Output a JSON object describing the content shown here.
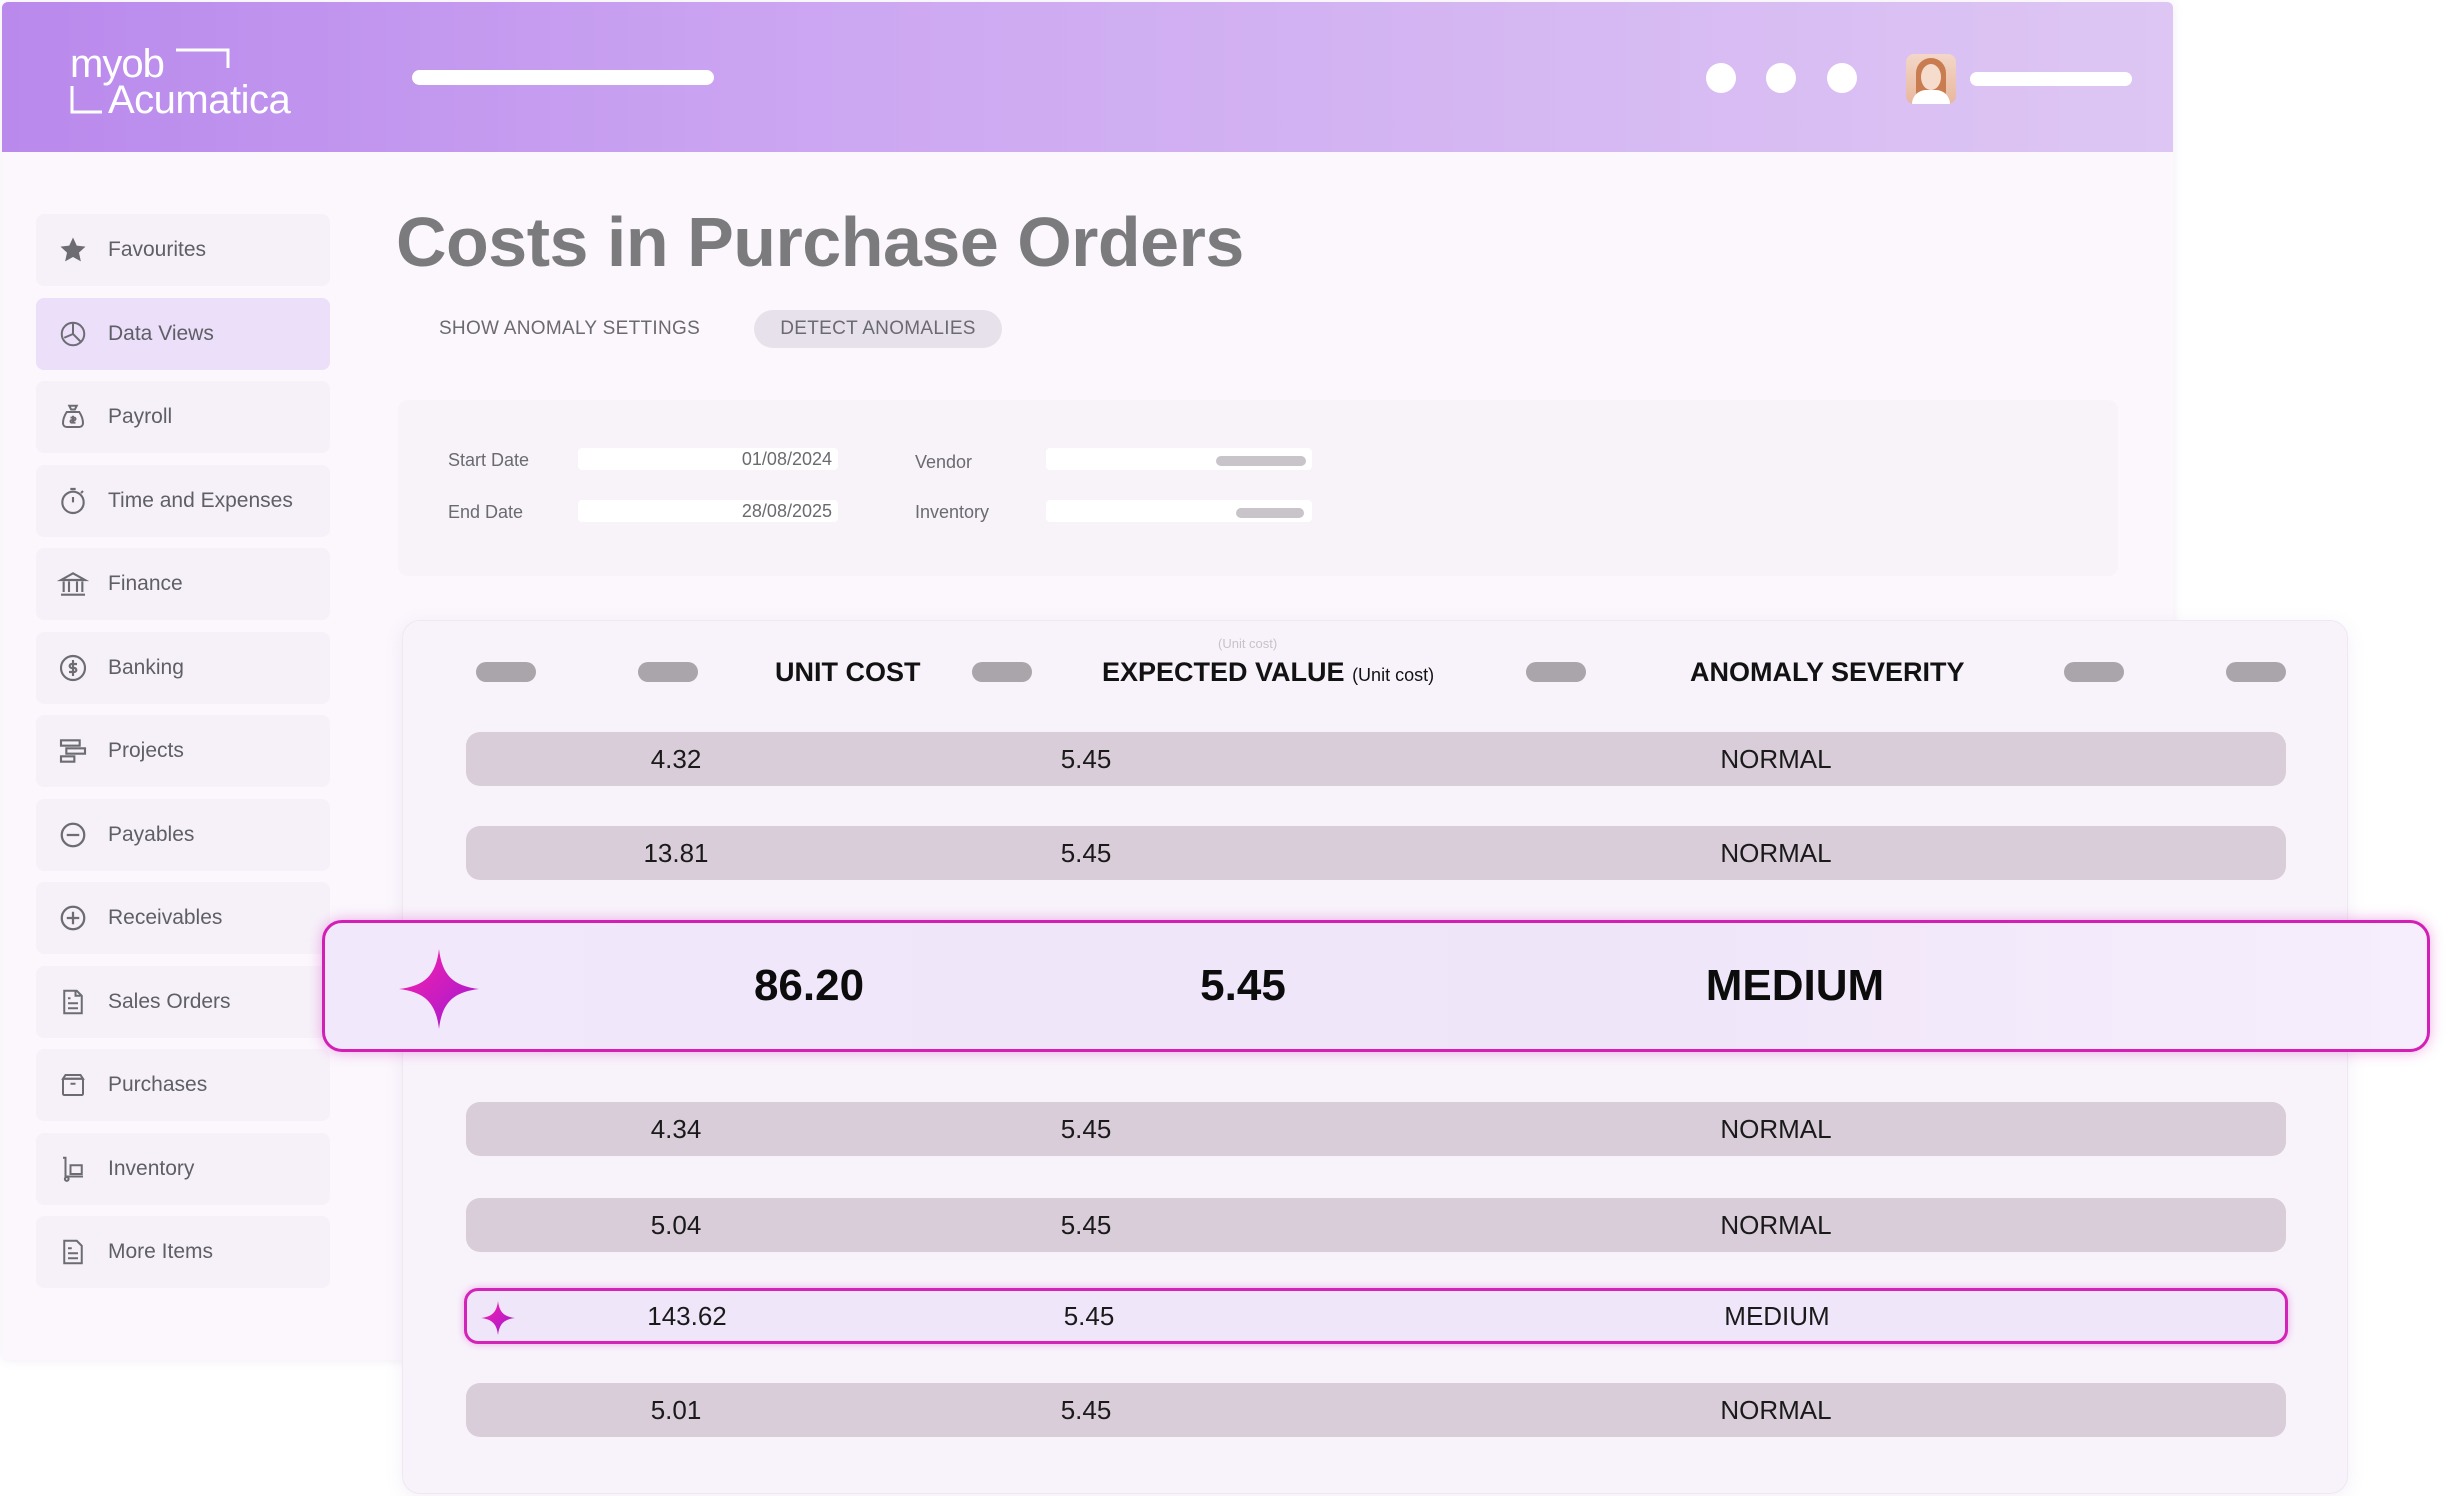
{
  "brand": {
    "line1": "myob",
    "line2": "Acumatica"
  },
  "sidebar": {
    "items": [
      {
        "label": "Favourites",
        "icon": "star-icon"
      },
      {
        "label": "Data Views",
        "icon": "pie-chart-icon"
      },
      {
        "label": "Payroll",
        "icon": "money-bag-icon"
      },
      {
        "label": "Time and Expenses",
        "icon": "stopwatch-icon"
      },
      {
        "label": "Finance",
        "icon": "bank-icon"
      },
      {
        "label": "Banking",
        "icon": "dollar-circle-icon"
      },
      {
        "label": "Projects",
        "icon": "gantt-icon"
      },
      {
        "label": "Payables",
        "icon": "minus-circle-icon"
      },
      {
        "label": "Receivables",
        "icon": "plus-circle-icon"
      },
      {
        "label": "Sales Orders",
        "icon": "invoice-icon"
      },
      {
        "label": "Purchases",
        "icon": "box-icon"
      },
      {
        "label": "Inventory",
        "icon": "dolly-icon"
      },
      {
        "label": "More Items",
        "icon": "document-icon"
      }
    ]
  },
  "page": {
    "title": "Costs in Purchase Orders",
    "show_anomaly_settings": "SHOW ANOMALY SETTINGS",
    "detect_anomalies": "DETECT ANOMALIES"
  },
  "filters": {
    "start_date_label": "Start Date",
    "start_date_value": "01/08/2024",
    "end_date_label": "End Date",
    "end_date_value": "28/08/2025",
    "vendor_label": "Vendor",
    "inventory_label": "Inventory"
  },
  "table": {
    "columns": {
      "unit_cost": "UNIT COST",
      "expected_value": "EXPECTED VALUE",
      "expected_value_note": "(Unit cost)",
      "expected_value_tiny": "(Unit cost)",
      "anomaly_severity": "ANOMALY SEVERITY"
    },
    "rows": [
      {
        "unit_cost": "4.32",
        "expected": "5.45",
        "severity": "NORMAL",
        "flagged": false
      },
      {
        "unit_cost": "13.81",
        "expected": "5.45",
        "severity": "NORMAL",
        "flagged": false
      },
      {
        "unit_cost": "86.20",
        "expected": "5.45",
        "severity": "MEDIUM",
        "flagged": true,
        "highlighted": true
      },
      {
        "unit_cost": "4.34",
        "expected": "5.45",
        "severity": "NORMAL",
        "flagged": false
      },
      {
        "unit_cost": "5.04",
        "expected": "5.45",
        "severity": "NORMAL",
        "flagged": false
      },
      {
        "unit_cost": "143.62",
        "expected": "5.45",
        "severity": "MEDIUM",
        "flagged": true
      },
      {
        "unit_cost": "5.01",
        "expected": "5.45",
        "severity": "NORMAL",
        "flagged": false
      }
    ]
  },
  "colors": {
    "header_gradient_start": "#b989ec",
    "header_gradient_end": "#ddc6f3",
    "anomaly_accent": "#d31fb6",
    "row_fill": "#d9cdda"
  }
}
